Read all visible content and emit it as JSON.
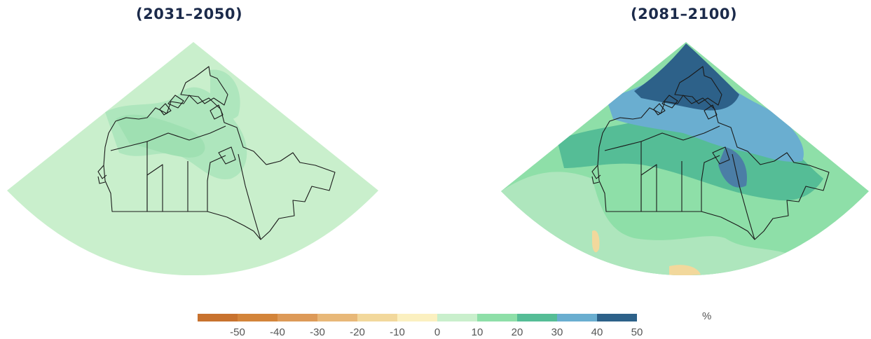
{
  "panels": [
    {
      "title": "(2031–2050)"
    },
    {
      "title": "(2081–2100)"
    }
  ],
  "legend": {
    "unit": "%",
    "ticks": [
      "-50",
      "-40",
      "-30",
      "-20",
      "-10",
      "0",
      "10",
      "20",
      "30",
      "40",
      "50"
    ],
    "colors": [
      "#c8722e",
      "#d3843a",
      "#dd9a58",
      "#e8b878",
      "#f2d89c",
      "#fbf0c0",
      "#c9efcc",
      "#8edfa8",
      "#55bd96",
      "#6aaed0",
      "#2d6189"
    ]
  }
}
